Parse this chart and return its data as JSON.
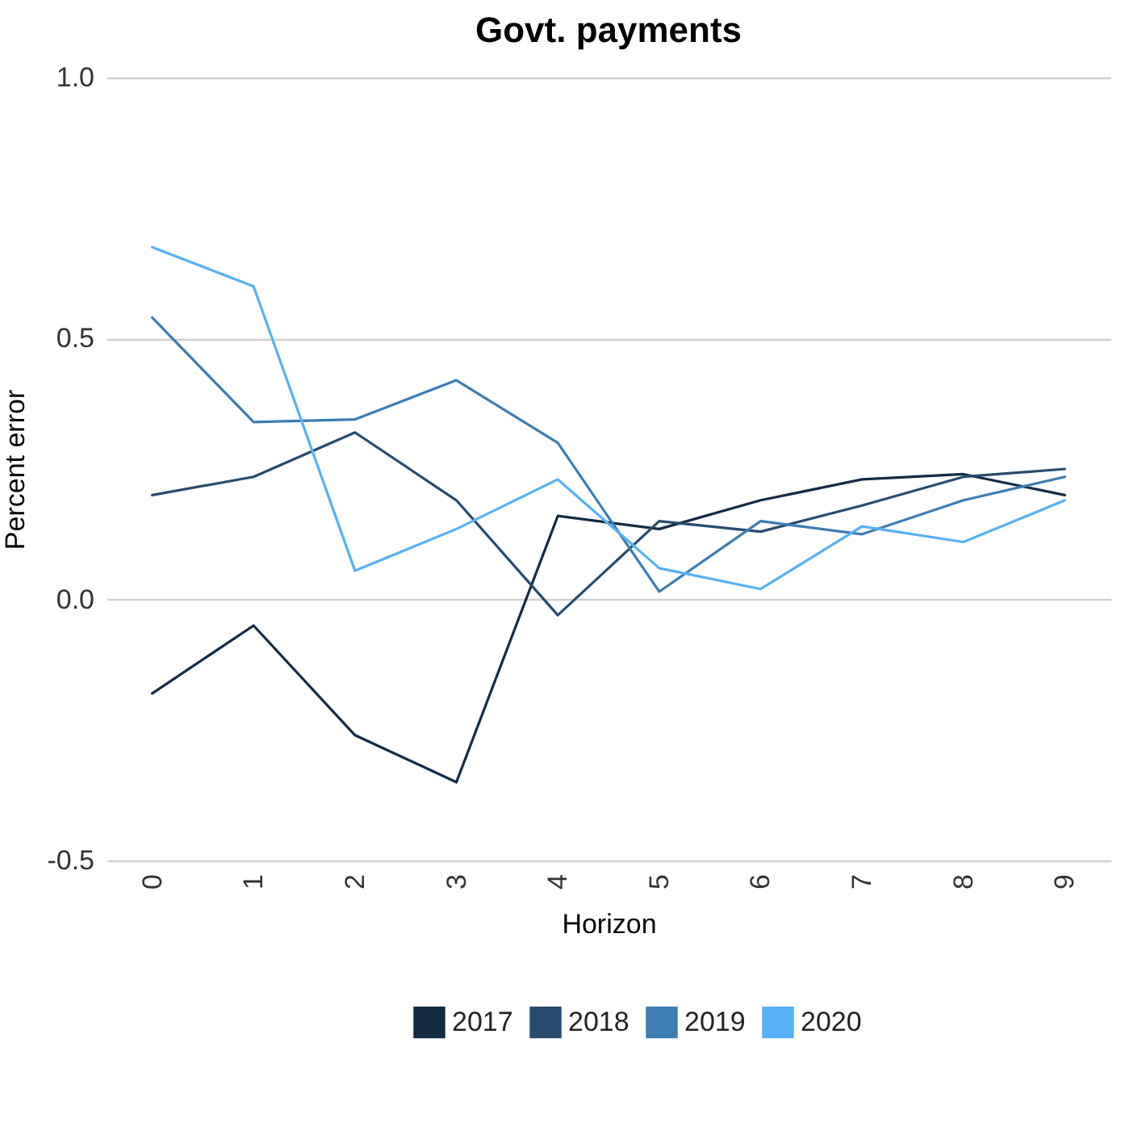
{
  "chart_data": {
    "type": "line",
    "title": "Govt. payments",
    "xlabel": "Horizon",
    "ylabel": "Percent error",
    "categories": [
      "0",
      "1",
      "2",
      "3",
      "4",
      "5",
      "6",
      "7",
      "8",
      "9"
    ],
    "series": [
      {
        "name": "2017",
        "color": "#132b43",
        "values": [
          -0.18,
          -0.05,
          -0.26,
          -0.35,
          0.16,
          0.135,
          0.19,
          0.23,
          0.24,
          0.2
        ]
      },
      {
        "name": "2018",
        "color": "#274b6e",
        "values": [
          0.2,
          0.235,
          0.32,
          0.19,
          -0.03,
          0.15,
          0.13,
          0.18,
          0.235,
          0.25
        ]
      },
      {
        "name": "2019",
        "color": "#3c7db3",
        "values": [
          0.54,
          0.34,
          0.345,
          0.42,
          0.3,
          0.015,
          0.15,
          0.125,
          0.19,
          0.235
        ]
      },
      {
        "name": "2020",
        "color": "#56b1f7",
        "values": [
          0.675,
          0.6,
          0.055,
          0.135,
          0.23,
          0.06,
          0.02,
          0.14,
          0.11,
          0.19
        ]
      }
    ],
    "ylim": [
      -0.5,
      1.0
    ],
    "yticks": [
      {
        "value": -0.5,
        "label": "-0.5"
      },
      {
        "value": 0,
        "label": "0.0"
      },
      {
        "value": 0.5,
        "label": "0.5"
      },
      {
        "value": 1,
        "label": "1.0"
      }
    ],
    "grid": "y",
    "legend": "bottom",
    "marker": "none",
    "line_style": "solid"
  }
}
